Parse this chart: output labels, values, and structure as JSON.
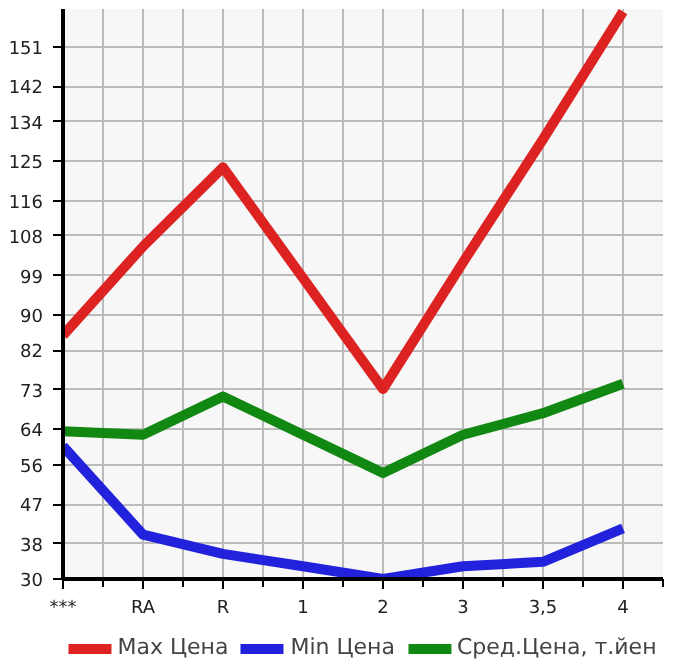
{
  "chart_data": {
    "type": "line",
    "categories": [
      "***",
      "RA",
      "R",
      "1",
      "2",
      "3",
      "3,5",
      "4"
    ],
    "series": [
      {
        "name": "Max Цена",
        "color": "#dd2222",
        "values": [
          85.4,
          105.6,
          123.6,
          98.4,
          73.2,
          102,
          130,
          159
        ]
      },
      {
        "name": "Min Цена",
        "color": "#2222dd",
        "values": [
          60.2,
          40.1,
          35.7,
          32.9,
          30,
          32.9,
          33.9,
          41.5
        ]
      },
      {
        "name": "Сред.Цена, т.йен",
        "color": "#118811",
        "values": [
          63.6,
          62.8,
          71.5,
          62.8,
          54.1,
          62.8,
          67.7,
          74.4
        ]
      }
    ],
    "ylim": [
      30,
      159.6
    ],
    "yticks": [
      30,
      38,
      47,
      56,
      64,
      73,
      82,
      90,
      99,
      108,
      116,
      125,
      134,
      142,
      151
    ],
    "grid": true,
    "legend": "bottom",
    "marker": "none",
    "line_style": "solid"
  }
}
